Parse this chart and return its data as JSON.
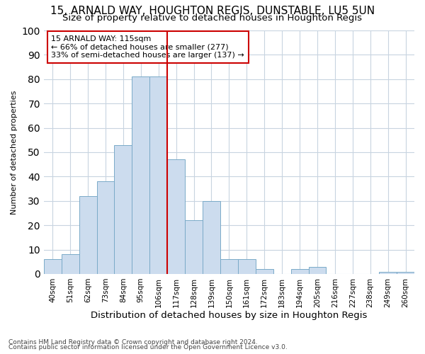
{
  "title1": "15, ARNALD WAY, HOUGHTON REGIS, DUNSTABLE, LU5 5UN",
  "title2": "Size of property relative to detached houses in Houghton Regis",
  "xlabel": "Distribution of detached houses by size in Houghton Regis",
  "ylabel": "Number of detached properties",
  "categories": [
    "40sqm",
    "51sqm",
    "62sqm",
    "73sqm",
    "84sqm",
    "95sqm",
    "106sqm",
    "117sqm",
    "128sqm",
    "139sqm",
    "150sqm",
    "161sqm",
    "172sqm",
    "183sqm",
    "194sqm",
    "205sqm",
    "216sqm",
    "227sqm",
    "238sqm",
    "249sqm",
    "260sqm"
  ],
  "values": [
    6,
    8,
    32,
    38,
    53,
    81,
    81,
    47,
    22,
    30,
    6,
    6,
    2,
    0,
    2,
    3,
    0,
    0,
    0,
    1,
    1
  ],
  "bar_color": "#ccdcee",
  "bar_edge_color": "#7aaac8",
  "grid_color": "#c8d4e0",
  "vline_x": 6.5,
  "vline_color": "#cc0000",
  "annotation_text": "15 ARNALD WAY: 115sqm\n← 66% of detached houses are smaller (277)\n33% of semi-detached houses are larger (137) →",
  "annotation_box_color": "#ffffff",
  "annotation_box_edge": "#cc0000",
  "ylim": [
    0,
    100
  ],
  "yticks": [
    0,
    10,
    20,
    30,
    40,
    50,
    60,
    70,
    80,
    90,
    100
  ],
  "footnote1": "Contains HM Land Registry data © Crown copyright and database right 2024.",
  "footnote2": "Contains public sector information licensed under the Open Government Licence v3.0.",
  "bg_color": "#ffffff",
  "title1_fontsize": 11,
  "title2_fontsize": 9.5,
  "xlabel_fontsize": 9.5,
  "ylabel_fontsize": 8,
  "tick_fontsize": 7.5,
  "annot_fontsize": 8,
  "footnote_fontsize": 6.5
}
